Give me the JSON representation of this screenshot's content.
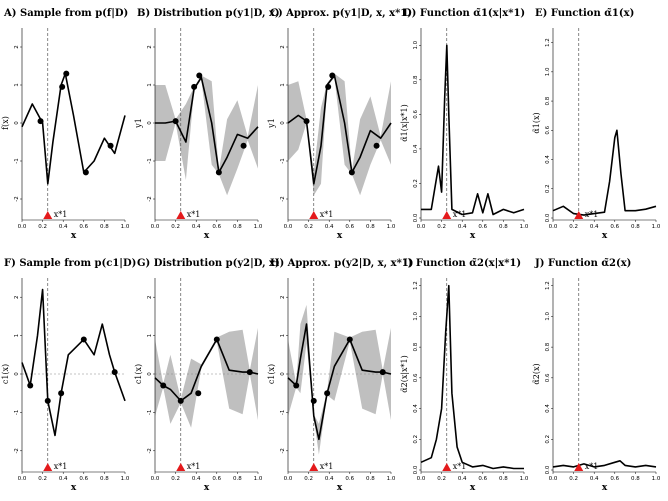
{
  "figure": {
    "panels": [
      {
        "id": "A",
        "title": "A) Sample from p(f|D)",
        "ylabel": "f(x)",
        "xlabel": "x"
      },
      {
        "id": "B",
        "title": "B) Distribution p(y1|D, x)",
        "ylabel": "y1",
        "xlabel": "x"
      },
      {
        "id": "C",
        "title": "C) Approx. p(y1|D, x, x*1)",
        "ylabel": "y1",
        "xlabel": "x"
      },
      {
        "id": "D",
        "title": "D) Function α̃1(x|x*1)",
        "ylabel": "α̃1(x|x*1)",
        "xlabel": "x"
      },
      {
        "id": "E",
        "title": "E) Function α̃1(x)",
        "ylabel": "α̃1(x)",
        "xlabel": "x"
      },
      {
        "id": "F",
        "title": "F) Sample from p(c1|D)",
        "ylabel": "c1(x)",
        "xlabel": "x"
      },
      {
        "id": "G",
        "title": "G) Distribution p(y2|D, x)",
        "ylabel": "c1(x)",
        "xlabel": "x"
      },
      {
        "id": "H",
        "title": "H) Approx. p(y2|D, x, x*1)",
        "ylabel": "c1(x)",
        "xlabel": "x"
      },
      {
        "id": "I",
        "title": "I) Function α̃2(x|x*1)",
        "ylabel": "α̃2(x|x*1)",
        "xlabel": "x"
      },
      {
        "id": "J",
        "title": "J) Function α̃2(x)",
        "ylabel": "α̃2(x)",
        "xlabel": "x"
      }
    ],
    "marker_label": "x*1",
    "x_ticks": [
      "0.0",
      "0.2",
      "0.4",
      "0.6",
      "0.8",
      "1.0"
    ],
    "y_ticks_signal": [
      "-2",
      "-1",
      "0",
      "1",
      "2"
    ],
    "y_ticks_D": [
      "0.0",
      "0.2",
      "0.4",
      "0.6",
      "0.8",
      "1.0"
    ],
    "y_ticks_E": [
      "0.0",
      "0.2",
      "0.4",
      "0.6",
      "0.8",
      "1.0",
      "1.2"
    ],
    "y_ticks_I": [
      "0.0",
      "0.2",
      "0.4",
      "0.6",
      "0.8",
      "1.0",
      "1.2"
    ],
    "y_ticks_J": [
      "0.0",
      "0.2",
      "0.4",
      "0.6",
      "0.8",
      "1.0",
      "1.2"
    ],
    "colors": {
      "band": "#bfbfbf",
      "line": "#000000",
      "marker": "#e41a1c",
      "dashed": "#555555"
    }
  },
  "chart_data": [
    {
      "type": "line",
      "title": "A) Sample from p(f|D)",
      "xlabel": "x",
      "ylabel": "f(x)",
      "xlim": [
        0,
        1
      ],
      "ylim": [
        -2.5,
        2.5
      ],
      "x": [
        0.0,
        0.1,
        0.2,
        0.25,
        0.3,
        0.38,
        0.42,
        0.5,
        0.6,
        0.7,
        0.8,
        0.9,
        1.0
      ],
      "values": [
        -0.1,
        0.5,
        0.0,
        -1.6,
        -0.5,
        1.0,
        1.3,
        0.2,
        -1.3,
        -1.0,
        -0.4,
        -0.8,
        0.2
      ],
      "points": [
        [
          0.18,
          0.05
        ],
        [
          0.39,
          0.95
        ],
        [
          0.43,
          1.3
        ],
        [
          0.62,
          -1.3
        ],
        [
          0.86,
          -0.6
        ]
      ],
      "marker_x": 0.25
    },
    {
      "type": "area",
      "title": "B) Distribution p(y1|D, x)",
      "xlabel": "x",
      "ylabel": "y1",
      "xlim": [
        0,
        1
      ],
      "ylim": [
        -2.5,
        2.5
      ],
      "x": [
        0.0,
        0.1,
        0.2,
        0.3,
        0.38,
        0.45,
        0.55,
        0.62,
        0.7,
        0.8,
        0.9,
        1.0
      ],
      "values": [
        0.0,
        0.0,
        0.05,
        -0.5,
        0.9,
        1.2,
        0.0,
        -1.3,
        -0.9,
        -0.3,
        -0.4,
        -0.1
      ],
      "band_half_width": [
        1.0,
        1.0,
        0.05,
        1.0,
        0.05,
        0.05,
        1.1,
        0.05,
        1.0,
        0.9,
        0.05,
        1.1
      ],
      "points": [
        [
          0.2,
          0.05
        ],
        [
          0.38,
          0.95
        ],
        [
          0.43,
          1.25
        ],
        [
          0.62,
          -1.3
        ],
        [
          0.86,
          -0.6
        ]
      ],
      "marker_x": 0.25
    },
    {
      "type": "area",
      "title": "C) Approx. p(y1|D, x, x*1)",
      "xlabel": "x",
      "ylabel": "y1",
      "xlim": [
        0,
        1
      ],
      "ylim": [
        -2.5,
        2.5
      ],
      "x": [
        0.0,
        0.1,
        0.18,
        0.25,
        0.32,
        0.38,
        0.45,
        0.55,
        0.62,
        0.7,
        0.8,
        0.9,
        1.0
      ],
      "values": [
        0.0,
        0.2,
        0.05,
        -1.6,
        -0.6,
        1.0,
        1.25,
        0.0,
        -1.3,
        -0.9,
        -0.2,
        -0.4,
        0.0
      ],
      "band_half_width": [
        1.0,
        0.9,
        0.05,
        0.3,
        1.0,
        0.05,
        0.05,
        1.1,
        0.05,
        1.0,
        0.9,
        0.05,
        1.1
      ],
      "points": [
        [
          0.18,
          0.05
        ],
        [
          0.39,
          0.95
        ],
        [
          0.43,
          1.25
        ],
        [
          0.62,
          -1.3
        ],
        [
          0.86,
          -0.6
        ]
      ],
      "marker_x": 0.25
    },
    {
      "type": "line",
      "title": "D) Function α̃1(x|x*1)",
      "xlabel": "x",
      "ylabel": "α̃1(x|x*1)",
      "xlim": [
        0,
        1
      ],
      "ylim": [
        0,
        1.1
      ],
      "x": [
        0.0,
        0.1,
        0.17,
        0.2,
        0.23,
        0.25,
        0.27,
        0.3,
        0.4,
        0.5,
        0.55,
        0.6,
        0.65,
        0.7,
        0.8,
        0.9,
        1.0
      ],
      "values": [
        0.05,
        0.05,
        0.3,
        0.15,
        0.7,
        1.0,
        0.6,
        0.05,
        0.02,
        0.03,
        0.14,
        0.03,
        0.14,
        0.02,
        0.05,
        0.03,
        0.05
      ],
      "marker_x": 0.25
    },
    {
      "type": "line",
      "title": "E) Function α̃1(x)",
      "xlabel": "x",
      "ylabel": "α̃1(x)",
      "xlim": [
        0,
        1
      ],
      "ylim": [
        0,
        1.3
      ],
      "x": [
        0.0,
        0.1,
        0.2,
        0.3,
        0.4,
        0.5,
        0.55,
        0.6,
        0.62,
        0.66,
        0.7,
        0.8,
        0.9,
        1.0
      ],
      "values": [
        0.05,
        0.08,
        0.03,
        0.02,
        0.03,
        0.04,
        0.25,
        0.55,
        0.6,
        0.3,
        0.05,
        0.05,
        0.06,
        0.08
      ],
      "marker_x": 0.25
    },
    {
      "type": "line",
      "title": "F) Sample from p(c1|D)",
      "xlabel": "x",
      "ylabel": "c1(x)",
      "xlim": [
        0,
        1
      ],
      "ylim": [
        -2.5,
        2.5
      ],
      "x": [
        0.0,
        0.08,
        0.15,
        0.2,
        0.25,
        0.32,
        0.38,
        0.45,
        0.6,
        0.7,
        0.78,
        0.85,
        0.9,
        1.0
      ],
      "values": [
        0.3,
        -0.3,
        1.0,
        2.2,
        -0.7,
        -1.6,
        -0.5,
        0.5,
        0.9,
        0.5,
        1.3,
        0.5,
        0.05,
        -0.7
      ],
      "points": [
        [
          0.08,
          -0.3
        ],
        [
          0.25,
          -0.7
        ],
        [
          0.38,
          -0.5
        ],
        [
          0.6,
          0.9
        ],
        [
          0.9,
          0.05
        ]
      ],
      "marker_x": 0.25
    },
    {
      "type": "area",
      "title": "G) Distribution p(y2|D, x)",
      "xlabel": "x",
      "ylabel": "c1(x)",
      "xlabel2": "x",
      "xlim": [
        0,
        1
      ],
      "ylim": [
        -2.5,
        2.5
      ],
      "x": [
        0.0,
        0.08,
        0.15,
        0.25,
        0.35,
        0.45,
        0.6,
        0.72,
        0.85,
        0.92,
        1.0
      ],
      "values": [
        -0.1,
        -0.3,
        -0.4,
        -0.7,
        -0.5,
        0.2,
        0.9,
        0.1,
        0.05,
        0.05,
        0.0
      ],
      "band_half_width": [
        1.0,
        0.05,
        0.9,
        0.05,
        0.9,
        0.05,
        0.05,
        1.0,
        1.1,
        0.05,
        1.2
      ],
      "points": [
        [
          0.08,
          -0.3
        ],
        [
          0.25,
          -0.7
        ],
        [
          0.42,
          -0.5
        ],
        [
          0.6,
          0.9
        ],
        [
          0.92,
          0.05
        ]
      ],
      "marker_x": 0.25
    },
    {
      "type": "area",
      "title": "H) Approx. p(y2|D, x, x*1)",
      "xlabel": "x",
      "ylabel": "c1(x)",
      "xlim": [
        0,
        1
      ],
      "ylim": [
        -2.5,
        2.5
      ],
      "x": [
        0.0,
        0.08,
        0.12,
        0.18,
        0.25,
        0.3,
        0.38,
        0.45,
        0.6,
        0.72,
        0.85,
        0.92,
        1.0
      ],
      "values": [
        -0.1,
        -0.3,
        0.4,
        1.3,
        -1.1,
        -1.7,
        -0.5,
        0.2,
        0.9,
        0.1,
        0.05,
        0.05,
        0.0
      ],
      "band_half_width": [
        1.0,
        0.05,
        0.9,
        0.5,
        0.05,
        0.4,
        0.05,
        0.9,
        0.05,
        1.0,
        1.1,
        0.05,
        1.2
      ],
      "points": [
        [
          0.08,
          -0.3
        ],
        [
          0.25,
          -0.7
        ],
        [
          0.38,
          -0.5
        ],
        [
          0.6,
          0.9
        ],
        [
          0.92,
          0.05
        ]
      ],
      "marker_x": 0.25
    },
    {
      "type": "line",
      "title": "I) Function α̃2(x|x*1)",
      "xlabel": "x",
      "ylabel": "α̃2(x|x*1)",
      "xlim": [
        0,
        1
      ],
      "ylim": [
        0,
        1.25
      ],
      "x": [
        0.0,
        0.1,
        0.15,
        0.2,
        0.24,
        0.27,
        0.3,
        0.35,
        0.4,
        0.5,
        0.6,
        0.7,
        0.8,
        0.9,
        1.0
      ],
      "values": [
        0.05,
        0.08,
        0.2,
        0.4,
        0.9,
        1.2,
        0.5,
        0.15,
        0.05,
        0.02,
        0.03,
        0.01,
        0.02,
        0.01,
        0.01
      ],
      "marker_x": 0.25
    },
    {
      "type": "line",
      "title": "J) Function α̃2(x)",
      "xlabel": "x",
      "ylabel": "α̃2(x)",
      "xlim": [
        0,
        1
      ],
      "ylim": [
        0,
        1.25
      ],
      "x": [
        0.0,
        0.1,
        0.2,
        0.3,
        0.4,
        0.5,
        0.6,
        0.65,
        0.7,
        0.8,
        0.9,
        1.0
      ],
      "values": [
        0.02,
        0.03,
        0.02,
        0.04,
        0.02,
        0.03,
        0.05,
        0.06,
        0.03,
        0.02,
        0.03,
        0.02
      ],
      "marker_x": 0.25
    }
  ]
}
